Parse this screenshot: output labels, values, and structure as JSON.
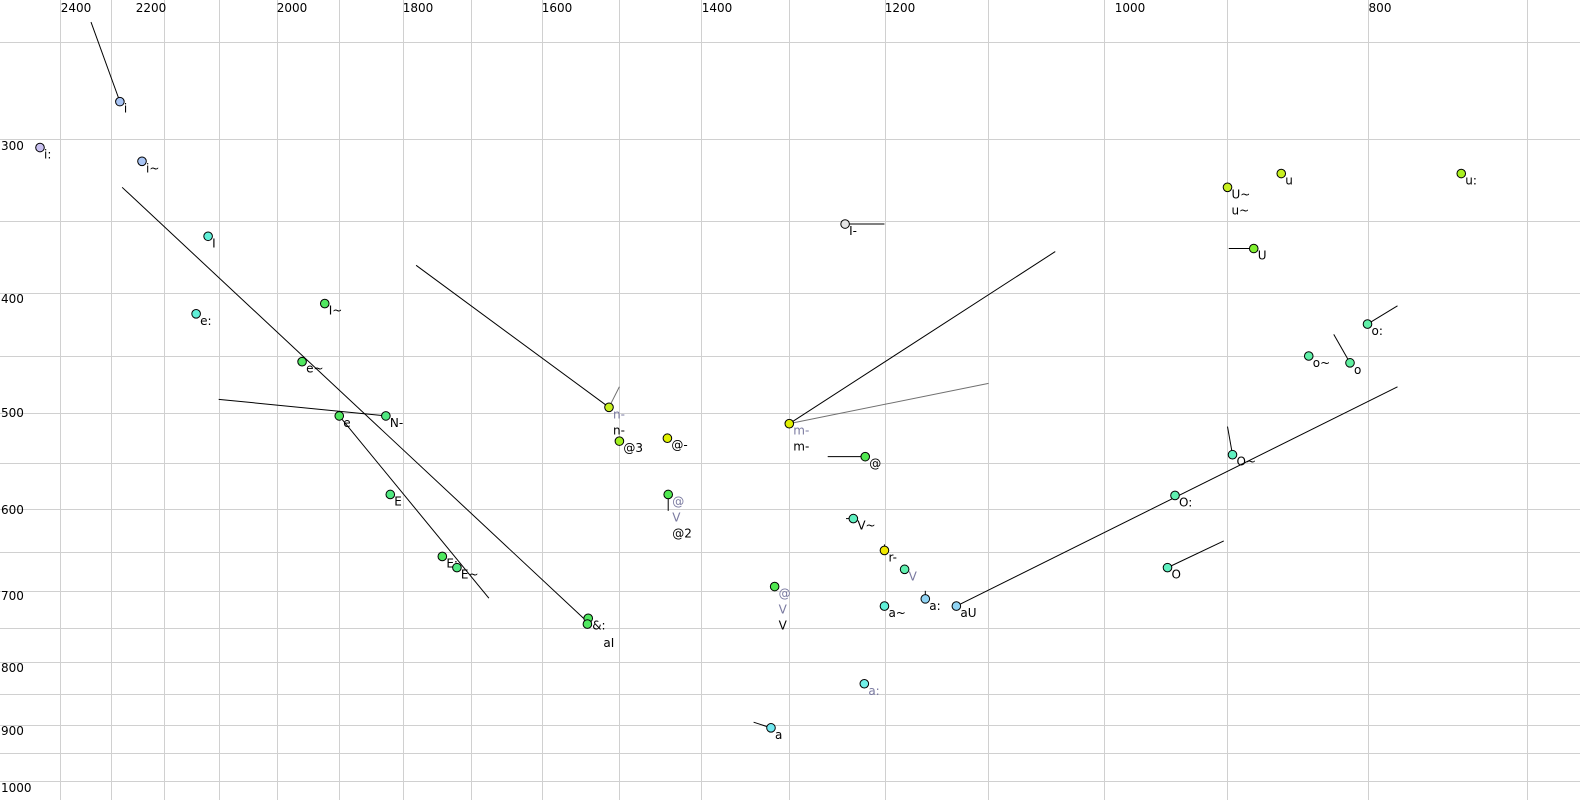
{
  "chart_data": {
    "type": "scatter",
    "title": "",
    "xlabel": "",
    "ylabel": "",
    "x_axis": {
      "position": "top",
      "reversed": true,
      "ticks": [
        2400,
        2200,
        2000,
        1800,
        1600,
        1400,
        1200,
        1000,
        800
      ]
    },
    "y_axis": {
      "position": "left",
      "reversed": true,
      "ticks": [
        300,
        400,
        500,
        600,
        700,
        800,
        900,
        1000
      ]
    },
    "grid": true,
    "points": [
      {
        "x": 2496,
        "y": 301,
        "color": "#c8c0f0",
        "labels": [
          {
            "text": "i:"
          }
        ]
      },
      {
        "x": 2283,
        "y": 271,
        "color": "#a8c4f4",
        "labels": [
          {
            "text": "i"
          }
        ]
      },
      {
        "x": 2224,
        "y": 310,
        "color": "#a8c4f4",
        "labels": [
          {
            "text": "i~"
          }
        ]
      },
      {
        "x": 2119,
        "y": 359,
        "color": "#60f0d8",
        "labels": [
          {
            "text": "I"
          }
        ]
      },
      {
        "x": 2136,
        "y": 413,
        "color": "#60f0d8",
        "labels": [
          {
            "text": "e:"
          }
        ]
      },
      {
        "x": 1948,
        "y": 404,
        "color": "#50e860",
        "labels": [
          {
            "text": "I~"
          }
        ]
      },
      {
        "x": 1984,
        "y": 455,
        "color": "#50e860",
        "labels": [
          {
            "text": "e~"
          }
        ]
      },
      {
        "x": 1925,
        "y": 503,
        "color": "#50e860",
        "labels": [
          {
            "text": "e"
          }
        ]
      },
      {
        "x": 1851,
        "y": 503,
        "color": "#50e880",
        "labels": [
          {
            "text": "N-"
          }
        ]
      },
      {
        "x": 1844,
        "y": 584,
        "color": "#50e880",
        "labels": [
          {
            "text": "E"
          }
        ]
      },
      {
        "x": 1765,
        "y": 654,
        "color": "#50e860",
        "labels": [
          {
            "text": "E:"
          }
        ]
      },
      {
        "x": 1744,
        "y": 667,
        "color": "#50e880",
        "labels": [
          {
            "text": "E~"
          }
        ]
      },
      {
        "x": 1561,
        "y": 731,
        "color": "#50e860",
        "labels": [
          {
            "text": "&:"
          }
        ]
      },
      {
        "x": 1562,
        "y": 739,
        "color": "#50e860",
        "labels": [
          {
            "text": "aI"
          }
        ]
      },
      {
        "x": 1535,
        "y": 495,
        "color": "#c8f020",
        "labels": [
          {
            "text": "n-",
            "grey": true
          },
          {
            "text": "n-"
          }
        ]
      },
      {
        "x": 1522,
        "y": 529,
        "color": "#a0f020",
        "labels": [
          {
            "text": "@3"
          }
        ]
      },
      {
        "x": 1462,
        "y": 526,
        "color": "#e0f000",
        "labels": [
          {
            "text": "@-"
          }
        ]
      },
      {
        "x": 1461,
        "y": 584,
        "color": "#50e850",
        "labels": [
          {
            "text": "@",
            "grey": true
          },
          {
            "text": "V",
            "grey": true
          },
          {
            "text": "@2"
          }
        ]
      },
      {
        "x": 1321,
        "y": 511,
        "color": "#e0f000",
        "labels": [
          {
            "text": "m-",
            "grey": true
          },
          {
            "text": "m-"
          }
        ]
      },
      {
        "x": 1260,
        "y": 351,
        "color": "#e4e4e4",
        "labels": [
          {
            "text": "I-"
          }
        ]
      },
      {
        "x": 1238,
        "y": 545,
        "color": "#50e850",
        "labels": [
          {
            "text": "@"
          }
        ]
      },
      {
        "x": 1251,
        "y": 610,
        "color": "#60f0c0",
        "labels": [
          {
            "text": "V~"
          }
        ]
      },
      {
        "x": 1217,
        "y": 647,
        "color": "#f0e800",
        "labels": [
          {
            "text": "r-"
          }
        ]
      },
      {
        "x": 1196,
        "y": 669,
        "color": "#60f0b0",
        "labels": [
          {
            "text": "V",
            "grey": true
          }
        ]
      },
      {
        "x": 1337,
        "y": 689,
        "color": "#50e850",
        "labels": [
          {
            "text": "@",
            "grey": true
          },
          {
            "text": "V",
            "grey": true
          },
          {
            "text": "V"
          }
        ]
      },
      {
        "x": 1217,
        "y": 714,
        "color": "#60f0d8",
        "labels": [
          {
            "text": "a~"
          }
        ]
      },
      {
        "x": 1178,
        "y": 704,
        "color": "#90d4f4",
        "labels": [
          {
            "text": "a:"
          }
        ]
      },
      {
        "x": 1151,
        "y": 714,
        "color": "#90d4f4",
        "labels": [
          {
            "text": "aU"
          }
        ]
      },
      {
        "x": 1239,
        "y": 825,
        "color": "#70f0e8",
        "labels": [
          {
            "text": "a:",
            "grey": true
          }
        ]
      },
      {
        "x": 1341,
        "y": 895,
        "color": "#70e8f0",
        "labels": [
          {
            "text": "a"
          }
        ]
      },
      {
        "x": 922,
        "y": 327,
        "color": "#c8f020",
        "labels": [
          {
            "text": "U~"
          },
          {
            "text": "u~"
          }
        ]
      },
      {
        "x": 879,
        "y": 318,
        "color": "#c8f020",
        "labels": [
          {
            "text": "u"
          }
        ]
      },
      {
        "x": 735,
        "y": 318,
        "color": "#a8f020",
        "labels": [
          {
            "text": "u:"
          }
        ]
      },
      {
        "x": 901,
        "y": 367,
        "color": "#80f030",
        "labels": [
          {
            "text": "U"
          }
        ]
      },
      {
        "x": 810,
        "y": 422,
        "color": "#60f0a8",
        "labels": [
          {
            "text": "o:"
          }
        ]
      },
      {
        "x": 857,
        "y": 450,
        "color": "#60f0a8",
        "labels": [
          {
            "text": "o~"
          }
        ]
      },
      {
        "x": 824,
        "y": 456,
        "color": "#60f0a0",
        "labels": [
          {
            "text": "o"
          }
        ]
      },
      {
        "x": 918,
        "y": 543,
        "color": "#60f0c0",
        "labels": [
          {
            "text": "O~"
          }
        ]
      },
      {
        "x": 964,
        "y": 585,
        "color": "#60f0b0",
        "labels": [
          {
            "text": "O:"
          }
        ]
      },
      {
        "x": 970,
        "y": 667,
        "color": "#60f0c0",
        "labels": [
          {
            "text": "O"
          }
        ]
      }
    ],
    "trajectories": [
      {
        "from": [
          2360,
          219
        ],
        "to": [
          2283,
          271
        ]
      },
      {
        "from": [
          2277,
          327
        ],
        "to": [
          1562,
          736
        ]
      },
      {
        "from": [
          1925,
          503
        ],
        "to": [
          1698,
          703
        ]
      },
      {
        "from": [
          2104,
          488
        ],
        "to": [
          1851,
          503
        ]
      },
      {
        "from": [
          1803,
          378
        ],
        "to": [
          1535,
          495
        ]
      },
      {
        "from": [
          1522,
          477
        ],
        "to": [
          1535,
          495
        ],
        "grey": true
      },
      {
        "from": [
          1065,
          369
        ],
        "to": [
          1321,
          511
        ]
      },
      {
        "from": [
          1123,
          474
        ],
        "to": [
          1321,
          511
        ],
        "grey": true
      },
      {
        "from": [
          1279,
          545
        ],
        "to": [
          1238,
          545
        ]
      },
      {
        "from": [
          1217,
          351
        ],
        "to": [
          1260,
          351
        ]
      },
      {
        "from": [
          1259,
          610
        ],
        "to": [
          1251,
          610
        ]
      },
      {
        "from": [
          1461,
          601
        ],
        "to": [
          1461,
          584
        ]
      },
      {
        "from": [
          1217,
          640
        ],
        "to": [
          1217,
          647
        ]
      },
      {
        "from": [
          1178,
          694
        ],
        "to": [
          1178,
          704
        ]
      },
      {
        "from": [
          786,
          477
        ],
        "to": [
          1151,
          714
        ]
      },
      {
        "from": [
          1360,
          886
        ],
        "to": [
          1341,
          895
        ]
      },
      {
        "from": [
          921,
          367
        ],
        "to": [
          901,
          367
        ]
      },
      {
        "from": [
          786,
          406
        ],
        "to": [
          810,
          422
        ]
      },
      {
        "from": [
          837,
          431
        ],
        "to": [
          824,
          456
        ]
      },
      {
        "from": [
          922,
          514
        ],
        "to": [
          918,
          543
        ]
      },
      {
        "from": [
          925,
          636
        ],
        "to": [
          970,
          667
        ]
      }
    ]
  }
}
